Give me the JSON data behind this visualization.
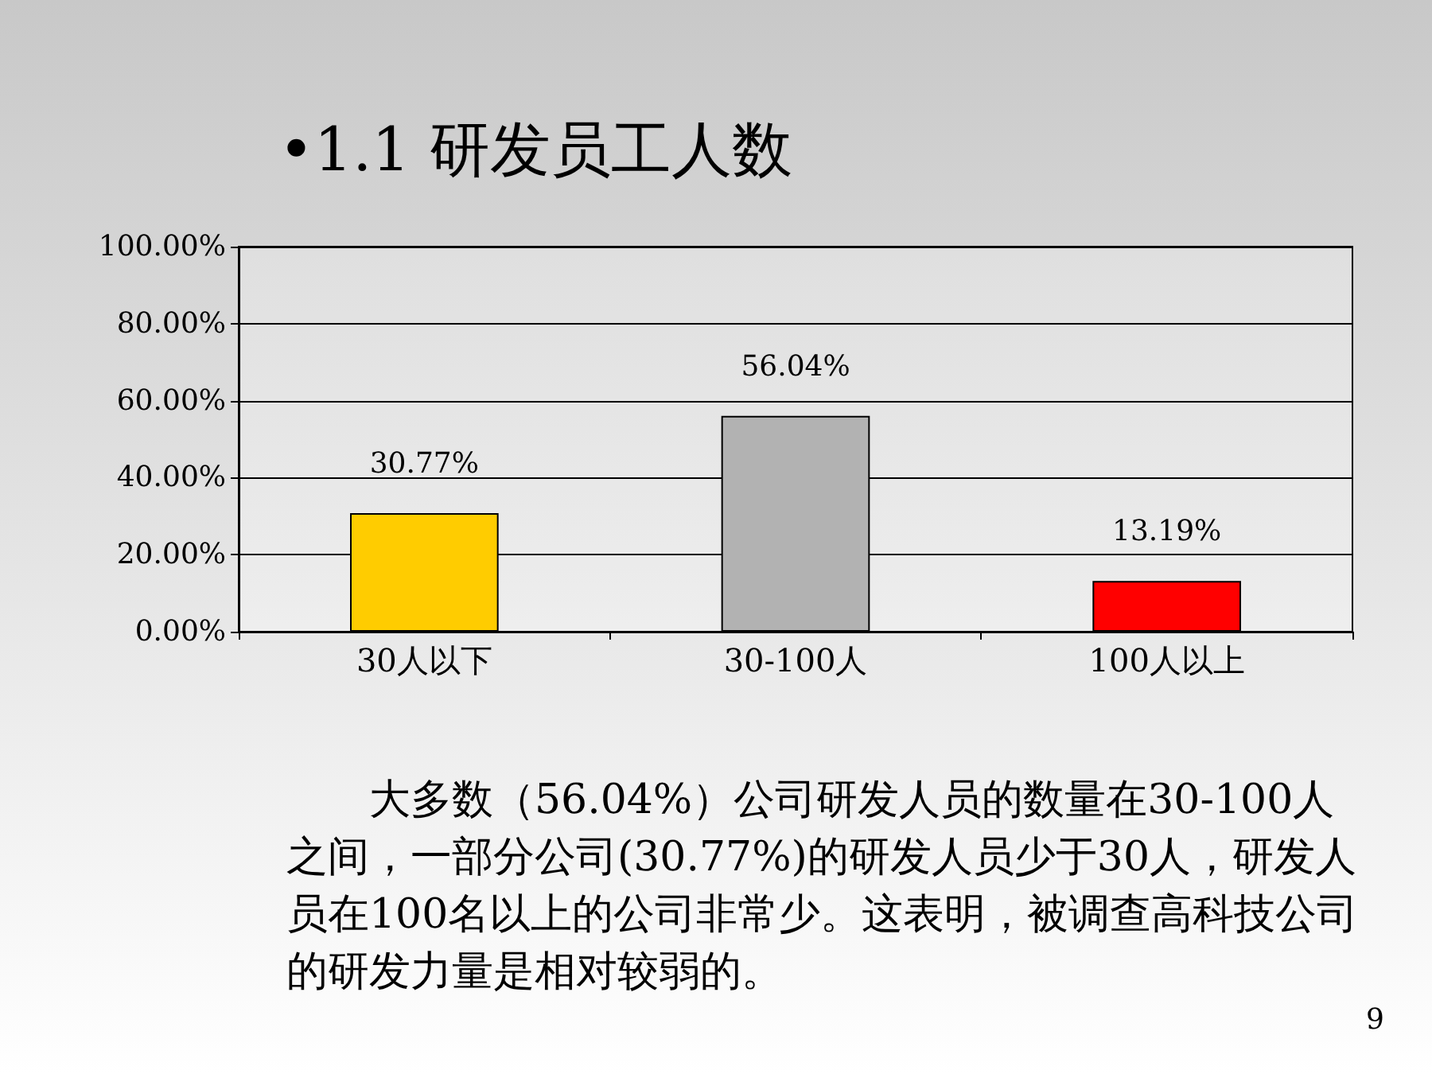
{
  "chart_data": {
    "type": "bar",
    "title": "•1.1 研发员工人数",
    "categories": [
      "30人以下",
      "30-100人",
      "100人以上"
    ],
    "values": [
      30.77,
      56.04,
      13.19
    ],
    "colors": [
      "#ffcc00",
      "#b2b2b2",
      "#ff0000"
    ],
    "value_labels": [
      "30.77%",
      "56.04%",
      "13.19%"
    ],
    "ylim": [
      0,
      100
    ],
    "yticks": [
      {
        "value": 0,
        "label": "0.00%"
      },
      {
        "value": 20,
        "label": "20.00%"
      },
      {
        "value": 40,
        "label": "40.00%"
      },
      {
        "value": 60,
        "label": "60.00%"
      },
      {
        "value": 80,
        "label": "80.00%"
      },
      {
        "value": 100,
        "label": "100.00%"
      }
    ],
    "grid": "y",
    "annotations": [
      "大多数（56.04%）公司研发人员的数量在30-100人之间，一部分公司(30.77%)的研发人员少于30人，研发人员在100名以上的公司非常少。这表明，被调查高科技公司的研发力量是相对较弱的。",
      "9"
    ]
  }
}
